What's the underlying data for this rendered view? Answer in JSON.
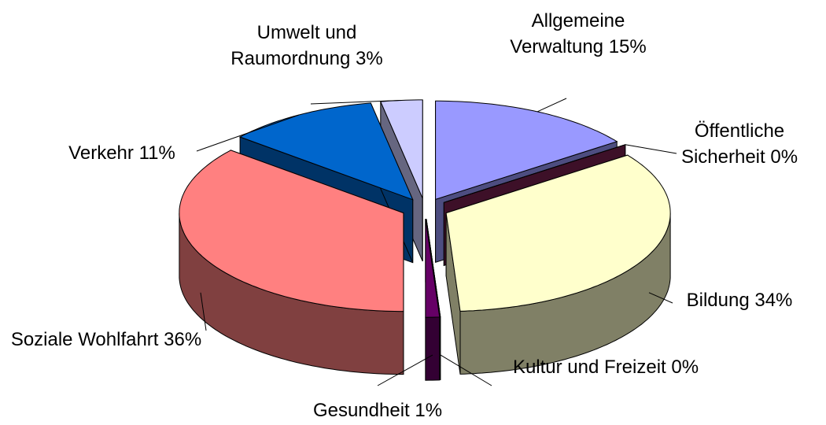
{
  "chart_data": {
    "type": "pie",
    "three_d": true,
    "exploded": true,
    "categories": [
      "Allgemeine Verwaltung",
      "Öffentliche Sicherheit",
      "Bildung",
      "Kultur und Freizeit",
      "Gesundheit",
      "Soziale Wohlfahrt",
      "Verkehr",
      "Umwelt und Raumordnung"
    ],
    "values": [
      15,
      0,
      34,
      0,
      1,
      36,
      11,
      3
    ],
    "value_labels": [
      "15%",
      "0%",
      "34%",
      "0%",
      "1%",
      "36%",
      "11%",
      "3%"
    ],
    "colors": [
      "#9999ff",
      "#7a2050",
      "#ffffcc",
      "#ccffff",
      "#660066",
      "#ff8080",
      "#0066cc",
      "#ccccff"
    ]
  }
}
